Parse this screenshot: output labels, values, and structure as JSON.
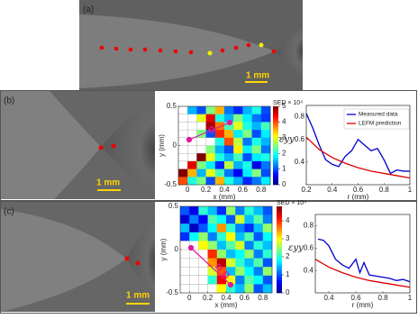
{
  "figure": {
    "panel_labels": [
      "(a)",
      "(b)",
      "(c)"
    ],
    "scale_bars": [
      "1 mm",
      "1 mm",
      "1 mm"
    ]
  },
  "chart_data": [
    {
      "type": "heatmap",
      "xlabel": "x (mm)",
      "ylabel": "y (mm)",
      "colorbar_label": "SED × 10⁴",
      "xlim": [
        -0.1,
        0.9
      ],
      "ylim": [
        -0.5,
        0.5
      ],
      "xticks": [
        0,
        0.2,
        0.4,
        0.6,
        0.8
      ],
      "yticks": [
        -0.5,
        0,
        0.5
      ],
      "clim": [
        0,
        5
      ],
      "cticks": [
        0,
        1,
        2,
        3,
        4,
        5
      ],
      "colormap": "jet",
      "z": [
        [
          null,
          1.5,
          1.0,
          2.5,
          3.5,
          1.2,
          0.8,
          1.5,
          2.0,
          1.0
        ],
        [
          null,
          null,
          3.0,
          4.5,
          2.0,
          1.5,
          2.5,
          1.8,
          1.2,
          0.9
        ],
        [
          null,
          null,
          null,
          4.8,
          3.8,
          2.2,
          3.0,
          2.0,
          1.5,
          2.2
        ],
        [
          null,
          null,
          2.5,
          1.0,
          4.2,
          3.5,
          1.8,
          2.5,
          1.0,
          1.8
        ],
        [
          null,
          null,
          null,
          null,
          2.0,
          4.0,
          2.8,
          1.2,
          2.0,
          1.5
        ],
        [
          null,
          null,
          null,
          2.5,
          1.5,
          1.0,
          3.2,
          1.8,
          2.5,
          1.2
        ],
        [
          null,
          null,
          5.0,
          3.0,
          2.0,
          1.5,
          2.2,
          1.0,
          1.8,
          2.0
        ],
        [
          null,
          4.5,
          2.5,
          1.8,
          0.8,
          2.8,
          1.5,
          2.0,
          0.5,
          1.2
        ],
        [
          5.0,
          3.5,
          1.5,
          3.0,
          2.2,
          1.2,
          0.6,
          1.8,
          2.5,
          1.0
        ],
        [
          4.0,
          2.0,
          2.5,
          1.0,
          3.5,
          2.0,
          1.5,
          0.8,
          1.2,
          1.8
        ]
      ]
    },
    {
      "type": "line",
      "xlabel": "r (mm)",
      "ylabel": "εyy",
      "xlim": [
        0.2,
        1
      ],
      "ylim": [
        0.2,
        0.9
      ],
      "xticks": [
        0.2,
        0.4,
        0.6,
        0.8,
        1
      ],
      "yticks": [
        0.4,
        0.6,
        0.8
      ],
      "legend": "upper right",
      "series": [
        {
          "name": "Measured data",
          "color": "#0000cc",
          "x": [
            0.2,
            0.25,
            0.3,
            0.35,
            0.4,
            0.45,
            0.5,
            0.55,
            0.6,
            0.65,
            0.7,
            0.75,
            0.8,
            0.85,
            0.9,
            0.95,
            1
          ],
          "values": [
            0.83,
            0.7,
            0.55,
            0.42,
            0.38,
            0.36,
            0.45,
            0.5,
            0.6,
            0.55,
            0.5,
            0.52,
            0.42,
            0.3,
            0.33,
            0.32,
            0.32
          ]
        },
        {
          "name": "LEFM prediction",
          "color": "#dd0000",
          "x": [
            0.2,
            0.3,
            0.4,
            0.5,
            0.6,
            0.7,
            0.8,
            0.9,
            1
          ],
          "values": [
            0.62,
            0.51,
            0.44,
            0.39,
            0.35,
            0.32,
            0.3,
            0.28,
            0.26
          ]
        }
      ]
    },
    {
      "type": "heatmap",
      "xlabel": "x (mm)",
      "ylabel": "y (mm)",
      "colorbar_label": "SED × 10⁴",
      "xlim": [
        -0.1,
        0.9
      ],
      "ylim": [
        -0.5,
        0.5
      ],
      "xticks": [
        0,
        0.2,
        0.4,
        0.6,
        0.8
      ],
      "yticks": [
        -0.5,
        0,
        0.5
      ],
      "clim": [
        0,
        4.8
      ],
      "cticks": [
        0,
        1,
        2,
        3,
        4
      ],
      "colormap": "jet",
      "z": [
        [
          1.0,
          0.5,
          2.0,
          1.5,
          0.8,
          2.5,
          1.2,
          2.0,
          1.5,
          1.0
        ],
        [
          0.4,
          1.2,
          0.6,
          2.2,
          1.8,
          1.0,
          2.8,
          1.5,
          2.2,
          1.2
        ],
        [
          1.5,
          0.3,
          1.0,
          1.8,
          3.5,
          2.0,
          1.2,
          0.8,
          1.5,
          2.5
        ],
        [
          0.8,
          1.8,
          2.5,
          1.2,
          2.0,
          3.0,
          1.5,
          2.2,
          1.0,
          1.8
        ],
        [
          null,
          null,
          3.0,
          2.5,
          1.5,
          2.2,
          2.8,
          1.2,
          2.0,
          1.5
        ],
        [
          null,
          null,
          null,
          4.0,
          2.5,
          1.5,
          1.8,
          2.5,
          1.2,
          2.0
        ],
        [
          null,
          null,
          null,
          3.5,
          4.5,
          2.8,
          2.0,
          1.5,
          2.2,
          1.0
        ],
        [
          null,
          null,
          null,
          2.8,
          3.8,
          1.5,
          2.5,
          1.8,
          1.2,
          2.5
        ],
        [
          null,
          null,
          null,
          2.0,
          4.2,
          3.0,
          1.2,
          2.2,
          1.8,
          1.0
        ],
        [
          null,
          null,
          null,
          null,
          3.0,
          2.0,
          1.5,
          2.5,
          1.0,
          1.5
        ]
      ]
    },
    {
      "type": "line",
      "xlabel": "r (mm)",
      "ylabel": "εyy",
      "xlim": [
        0.3,
        1
      ],
      "ylim": [
        0.2,
        0.9
      ],
      "xticks": [
        0.4,
        0.6,
        0.8,
        1
      ],
      "yticks": [
        0.4,
        0.6,
        0.8
      ],
      "series": [
        {
          "name": "Measured data",
          "color": "#0000cc",
          "x": [
            0.32,
            0.36,
            0.4,
            0.45,
            0.5,
            0.55,
            0.6,
            0.63,
            0.66,
            0.7,
            0.75,
            0.8,
            0.85,
            0.9,
            0.95,
            1
          ],
          "values": [
            0.68,
            0.67,
            0.62,
            0.5,
            0.45,
            0.42,
            0.5,
            0.38,
            0.47,
            0.36,
            0.35,
            0.34,
            0.33,
            0.31,
            0.32,
            0.3
          ]
        },
        {
          "name": "LEFM prediction",
          "color": "#dd0000",
          "x": [
            0.3,
            0.4,
            0.5,
            0.6,
            0.7,
            0.8,
            0.9,
            1
          ],
          "values": [
            0.5,
            0.43,
            0.38,
            0.34,
            0.31,
            0.29,
            0.27,
            0.25
          ]
        }
      ]
    }
  ]
}
